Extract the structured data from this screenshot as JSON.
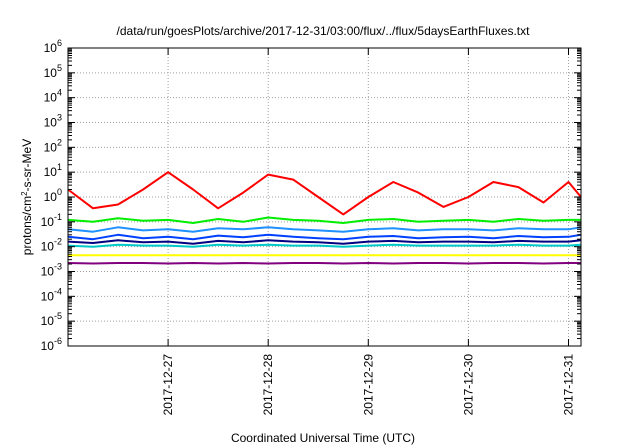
{
  "chart_data": {
    "type": "line",
    "title": "/data/run/goesPlots/archive/2017-12-31/03:00/flux/../flux/5daysEarthFluxes.txt",
    "xlabel": "Coordinated Universal Time (UTC)",
    "ylabel": {
      "base": "protons/cm",
      "sup": "2",
      "rest": "-s-sr-MeV"
    },
    "x_range": [
      "2017-12-26T00:00",
      "2017-12-31T03:00"
    ],
    "x_ticks": [
      "2017-12-27",
      "2017-12-28",
      "2017-12-29",
      "2017-12-30",
      "2017-12-31"
    ],
    "y_scale": "log",
    "y_range": [
      1e-06,
      1000000.0
    ],
    "y_ticks": [
      {
        "base": "10",
        "exp": "-6"
      },
      {
        "base": "10",
        "exp": "-5"
      },
      {
        "base": "10",
        "exp": "-4"
      },
      {
        "base": "10",
        "exp": "-3"
      },
      {
        "base": "10",
        "exp": "-2"
      },
      {
        "base": "10",
        "exp": "-1"
      },
      {
        "base": "10",
        "exp": "0"
      },
      {
        "base": "10",
        "exp": "1"
      },
      {
        "base": "10",
        "exp": "2"
      },
      {
        "base": "10",
        "exp": "3"
      },
      {
        "base": "10",
        "exp": "4"
      },
      {
        "base": "10",
        "exp": "5"
      },
      {
        "base": "10",
        "exp": "6"
      }
    ],
    "grid": true,
    "legend": "none",
    "series_x": [
      "2017-12-26T00:00",
      "2017-12-26T06:00",
      "2017-12-26T12:00",
      "2017-12-26T18:00",
      "2017-12-27T00:00",
      "2017-12-27T06:00",
      "2017-12-27T12:00",
      "2017-12-27T18:00",
      "2017-12-28T00:00",
      "2017-12-28T06:00",
      "2017-12-28T12:00",
      "2017-12-28T18:00",
      "2017-12-29T00:00",
      "2017-12-29T06:00",
      "2017-12-29T12:00",
      "2017-12-29T18:00",
      "2017-12-30T00:00",
      "2017-12-30T06:00",
      "2017-12-30T12:00",
      "2017-12-30T18:00",
      "2017-12-31T00:00",
      "2017-12-31T03:00"
    ],
    "series": [
      {
        "color": "#ff0000",
        "values": [
          2.0,
          0.35,
          0.5,
          2.0,
          10.0,
          2.0,
          0.35,
          1.5,
          8.0,
          5.0,
          1.0,
          0.2,
          1.0,
          4.0,
          1.5,
          0.4,
          1.0,
          4.0,
          2.5,
          0.6,
          4.0,
          1.0
        ]
      },
      {
        "color": "#00ee00",
        "values": [
          0.12,
          0.1,
          0.14,
          0.11,
          0.12,
          0.09,
          0.13,
          0.1,
          0.15,
          0.12,
          0.11,
          0.09,
          0.12,
          0.13,
          0.1,
          0.11,
          0.12,
          0.1,
          0.13,
          0.11,
          0.12,
          0.12
        ]
      },
      {
        "color": "#1e90ff",
        "values": [
          0.05,
          0.04,
          0.06,
          0.045,
          0.05,
          0.04,
          0.055,
          0.05,
          0.06,
          0.05,
          0.045,
          0.04,
          0.05,
          0.055,
          0.045,
          0.05,
          0.05,
          0.045,
          0.055,
          0.05,
          0.05,
          0.06
        ]
      },
      {
        "color": "#0040ff",
        "values": [
          0.025,
          0.02,
          0.03,
          0.022,
          0.025,
          0.02,
          0.028,
          0.024,
          0.03,
          0.025,
          0.022,
          0.02,
          0.025,
          0.027,
          0.022,
          0.024,
          0.025,
          0.022,
          0.027,
          0.024,
          0.025,
          0.03
        ]
      },
      {
        "color": "#000080",
        "values": [
          0.016,
          0.014,
          0.018,
          0.015,
          0.016,
          0.013,
          0.017,
          0.015,
          0.018,
          0.016,
          0.015,
          0.013,
          0.016,
          0.017,
          0.015,
          0.016,
          0.016,
          0.015,
          0.017,
          0.016,
          0.016,
          0.018
        ]
      },
      {
        "color": "#00c8c8",
        "values": [
          0.011,
          0.01,
          0.012,
          0.011,
          0.011,
          0.01,
          0.012,
          0.011,
          0.012,
          0.011,
          0.011,
          0.01,
          0.011,
          0.012,
          0.011,
          0.011,
          0.011,
          0.011,
          0.012,
          0.011,
          0.011,
          0.012
        ]
      },
      {
        "color": "#ffff00",
        "values": [
          0.0045,
          0.0045,
          0.0045,
          0.0045,
          0.0045,
          0.0045,
          0.0045,
          0.0045,
          0.0045,
          0.0045,
          0.0045,
          0.0045,
          0.0045,
          0.0045,
          0.0045,
          0.0045,
          0.0045,
          0.0045,
          0.0045,
          0.0045,
          0.0045,
          0.0045
        ]
      },
      {
        "color": "#800080",
        "values": [
          0.0022,
          0.0021,
          0.0022,
          0.0022,
          0.0021,
          0.0022,
          0.0021,
          0.0022,
          0.0021,
          0.0022,
          0.0022,
          0.0021,
          0.0022,
          0.0021,
          0.0022,
          0.0022,
          0.0021,
          0.0022,
          0.0022,
          0.0021,
          0.0022,
          0.0022
        ]
      }
    ]
  }
}
